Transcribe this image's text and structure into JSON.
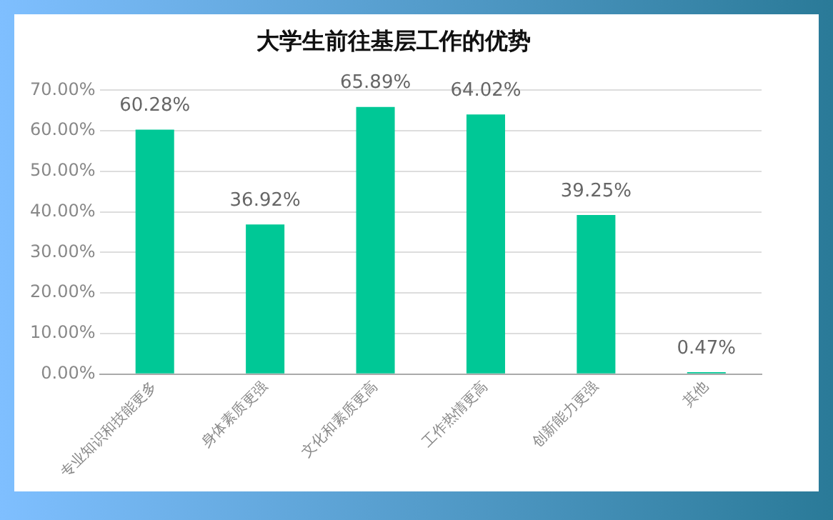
{
  "chart_data": {
    "type": "bar",
    "title": "大学生前往基层工作的优势",
    "categories": [
      "专业知识和技能更多",
      "身体素质更强",
      "文化和素质更高",
      "工作热情更高",
      "创新能力更强",
      "其他"
    ],
    "values": [
      60.28,
      36.92,
      65.89,
      64.02,
      39.25,
      0.47
    ],
    "value_labels": [
      "60.28%",
      "36.92%",
      "65.89%",
      "64.02%",
      "39.25%",
      "0.47%"
    ],
    "color": "#00c896",
    "ylim": [
      0,
      70
    ],
    "yticks": [
      {
        "value": 0,
        "label": "0.00%"
      },
      {
        "value": 10,
        "label": "10.00%"
      },
      {
        "value": 20,
        "label": "20.00%"
      },
      {
        "value": 30,
        "label": "30.00%"
      },
      {
        "value": 40,
        "label": "40.00%"
      },
      {
        "value": 50,
        "label": "50.00%"
      },
      {
        "value": 60,
        "label": "60.00%"
      },
      {
        "value": 70,
        "label": "70.00%"
      }
    ],
    "grid": "y",
    "legend": false
  }
}
